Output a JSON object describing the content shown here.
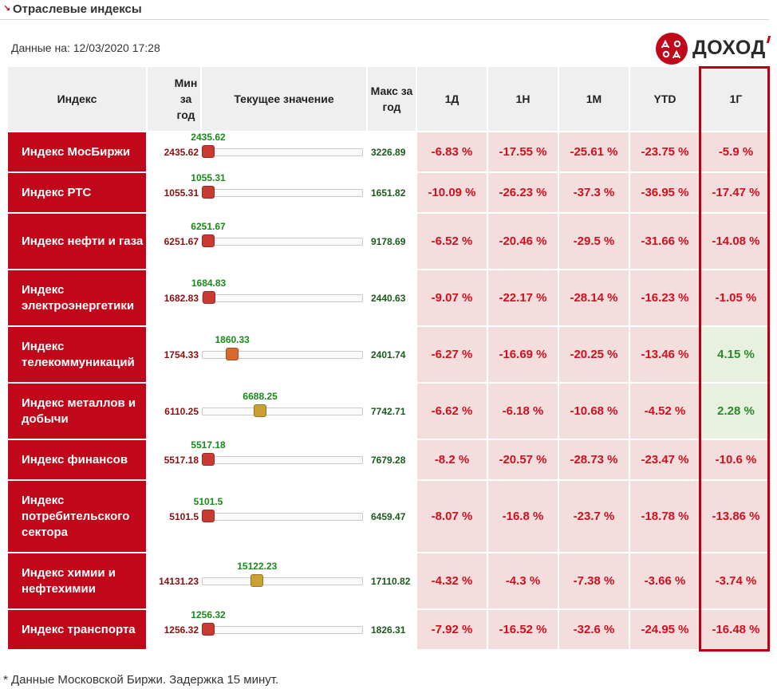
{
  "header": {
    "title": "Отраслевые индексы"
  },
  "date_label": "Данные на: 12/03/2020 17:28",
  "logo": {
    "text": "ДОХОД"
  },
  "columns": {
    "index": "Индекс",
    "min": "Мин за год",
    "current": "Текущее значение",
    "max": "Макс за год",
    "d1": "1Д",
    "w1": "1Н",
    "m1": "1М",
    "ytd": "YTD",
    "y1": "1Г"
  },
  "colors": {
    "brand_red": "#c0081a",
    "negative": "#d0101e",
    "positive": "#2a8a2a"
  },
  "rows": [
    {
      "name": "Индекс МосБиржи",
      "min": "2435.62",
      "cur": "2435.62",
      "max": "3226.89",
      "pos_frac": 0.0,
      "knob": "#c93a33",
      "d1": "-6.83 %",
      "w1": "-17.55 %",
      "m1": "-25.61 %",
      "ytd": "-23.75 %",
      "y1": "-5.9 %",
      "y1_positive": false
    },
    {
      "name": "Индекс РТС",
      "min": "1055.31",
      "cur": "1055.31",
      "max": "1651.82",
      "pos_frac": 0.0,
      "knob": "#c93a33",
      "d1": "-10.09 %",
      "w1": "-26.23 %",
      "m1": "-37.3 %",
      "ytd": "-36.95 %",
      "y1": "-17.47 %",
      "y1_positive": false
    },
    {
      "name": "Индекс нефти и газа",
      "min": "6251.67",
      "cur": "6251.67",
      "max": "9178.69",
      "pos_frac": 0.0,
      "knob": "#c93a33",
      "d1": "-6.52 %",
      "w1": "-20.46 %",
      "m1": "-29.5 %",
      "ytd": "-31.66 %",
      "y1": "-14.08 %",
      "y1_positive": false
    },
    {
      "name": "Индекс электроэнергетики",
      "min": "1682.83",
      "cur": "1684.83",
      "max": "2440.63",
      "pos_frac": 0.003,
      "knob": "#c93a33",
      "d1": "-9.07 %",
      "w1": "-22.17 %",
      "m1": "-28.14 %",
      "ytd": "-16.23 %",
      "y1": "-1.05 %",
      "y1_positive": false
    },
    {
      "name": "Индекс телекоммуникаций",
      "min": "1754.33",
      "cur": "1860.33",
      "max": "2401.74",
      "pos_frac": 0.164,
      "knob": "#d5692e",
      "d1": "-6.27 %",
      "w1": "-16.69 %",
      "m1": "-20.25 %",
      "ytd": "-13.46 %",
      "y1": "4.15 %",
      "y1_positive": true
    },
    {
      "name": "Индекс металлов и добычи",
      "min": "6110.25",
      "cur": "6688.25",
      "max": "7742.71",
      "pos_frac": 0.354,
      "knob": "#caa033",
      "d1": "-6.62 %",
      "w1": "-6.18 %",
      "m1": "-10.68 %",
      "ytd": "-4.52 %",
      "y1": "2.28 %",
      "y1_positive": true
    },
    {
      "name": "Индекс финансов",
      "min": "5517.18",
      "cur": "5517.18",
      "max": "7679.28",
      "pos_frac": 0.0,
      "knob": "#c93a33",
      "d1": "-8.2 %",
      "w1": "-20.57 %",
      "m1": "-28.73 %",
      "ytd": "-23.47 %",
      "y1": "-10.6 %",
      "y1_positive": false
    },
    {
      "name": "Индекс потребительского сектора",
      "min": "5101.5",
      "cur": "5101.5",
      "max": "6459.47",
      "pos_frac": 0.0,
      "knob": "#c93a33",
      "d1": "-8.07 %",
      "w1": "-16.8 %",
      "m1": "-23.7 %",
      "ytd": "-18.78 %",
      "y1": "-13.86 %",
      "y1_positive": false
    },
    {
      "name": "Индекс химии и нефтехимии",
      "min": "14131.23",
      "cur": "15122.23",
      "max": "17110.82",
      "pos_frac": 0.333,
      "knob": "#c9a033",
      "d1": "-4.32 %",
      "w1": "-4.3 %",
      "m1": "-7.38 %",
      "ytd": "-3.66 %",
      "y1": "-3.74 %",
      "y1_positive": false
    },
    {
      "name": "Индекс транспорта",
      "min": "1256.32",
      "cur": "1256.32",
      "max": "1826.31",
      "pos_frac": 0.0,
      "knob": "#c93a33",
      "d1": "-7.92 %",
      "w1": "-16.52 %",
      "m1": "-32.6 %",
      "ytd": "-24.95 %",
      "y1": "-16.48 %",
      "y1_positive": false
    }
  ],
  "footnote": "* Данные Московской Биржи. Задержка 15 минут."
}
